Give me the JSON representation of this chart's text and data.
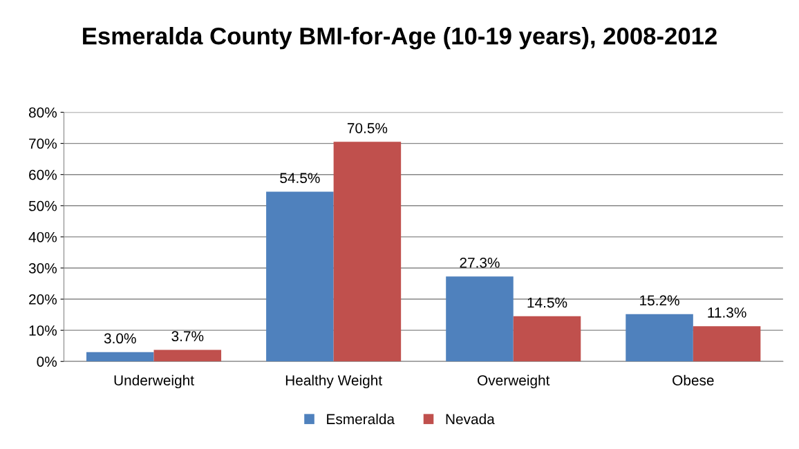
{
  "chart_data": {
    "type": "bar",
    "title": "Esmeralda County BMI-for-Age (10-19 years), 2008-2012",
    "categories": [
      "Underweight",
      "Healthy Weight",
      "Overweight",
      "Obese"
    ],
    "series": [
      {
        "name": "Esmeralda",
        "color": "#4f81bd",
        "values": [
          3.0,
          54.5,
          27.3,
          15.2
        ],
        "value_labels": [
          "3.0%",
          "54.5%",
          "27.3%",
          "15.2%"
        ]
      },
      {
        "name": "Nevada",
        "color": "#c0504d",
        "values": [
          3.7,
          70.5,
          14.5,
          11.3
        ],
        "value_labels": [
          "3.7%",
          "70.5%",
          "14.5%",
          "11.3%"
        ]
      }
    ],
    "ylim": [
      0,
      80
    ],
    "yticks": [
      {
        "value": 0,
        "label": "0%"
      },
      {
        "value": 10,
        "label": "10%"
      },
      {
        "value": 20,
        "label": "20%"
      },
      {
        "value": 30,
        "label": "30%"
      },
      {
        "value": 40,
        "label": "40%"
      },
      {
        "value": 50,
        "label": "50%"
      },
      {
        "value": 60,
        "label": "60%"
      },
      {
        "value": 70,
        "label": "70%"
      },
      {
        "value": 80,
        "label": "80%"
      }
    ],
    "grid": "y",
    "legend": "bottom"
  }
}
